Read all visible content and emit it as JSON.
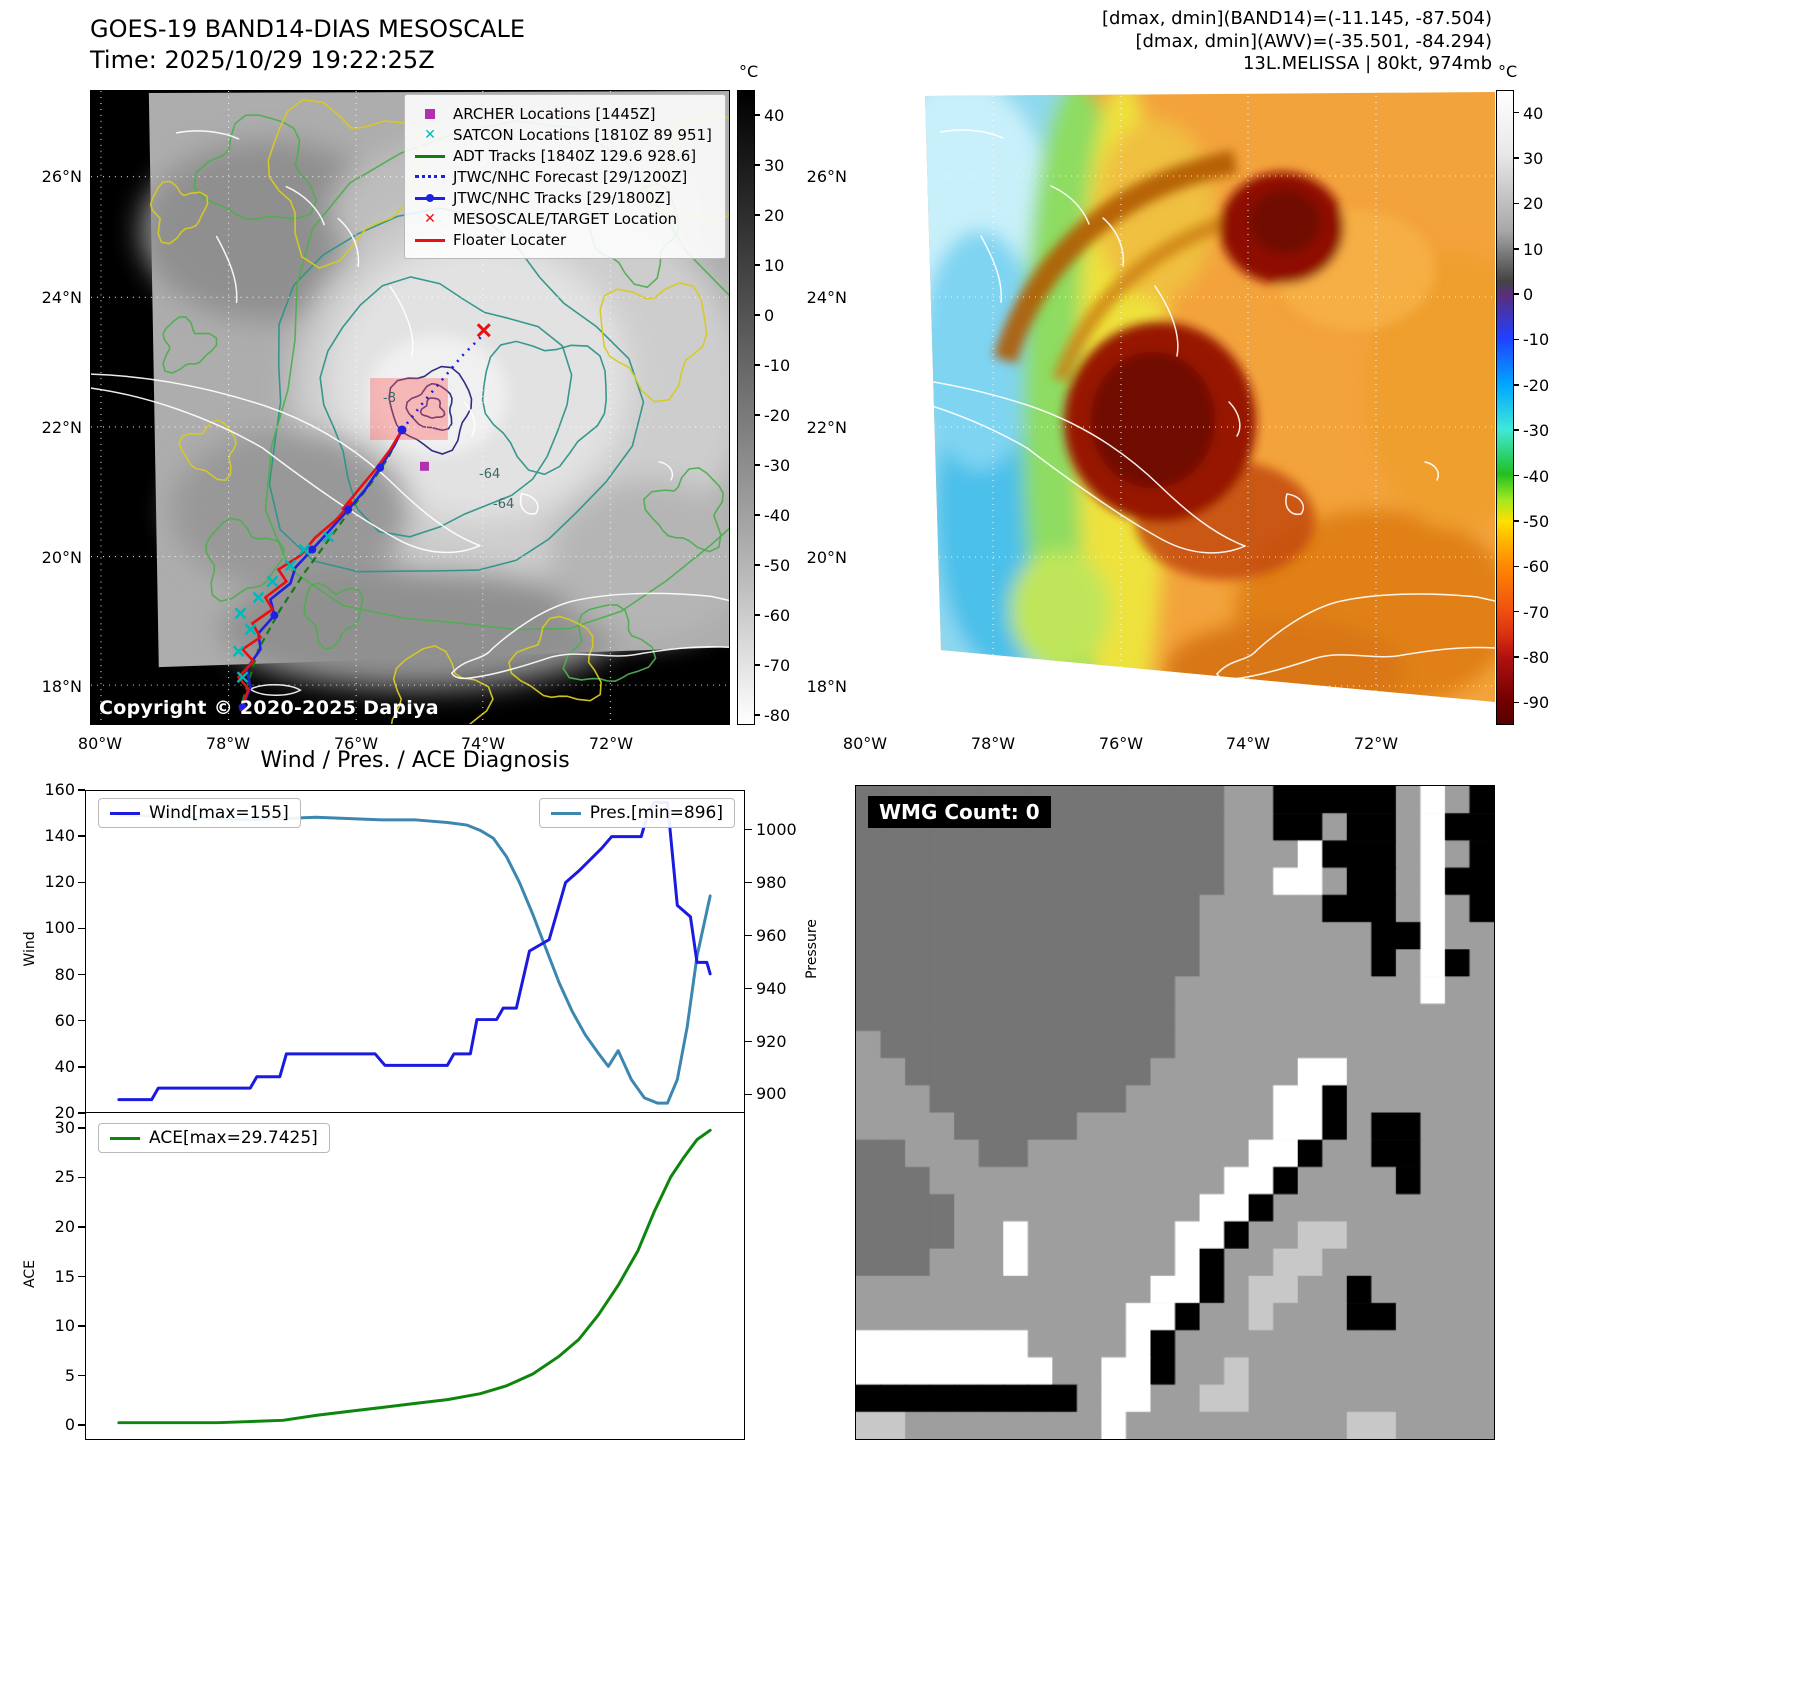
{
  "panel_band14": {
    "title_line1": "GOES-19 BAND14-DIAS MESOSCALE",
    "title_line2": "Time: 2025/10/29 19:22:25Z",
    "copyright": "Copyright © 2020-2025 Dapiya",
    "lat_ticks": [
      "26°N",
      "24°N",
      "22°N",
      "20°N",
      "18°N"
    ],
    "lon_ticks": [
      "80°W",
      "78°W",
      "76°W",
      "74°W",
      "72°W"
    ],
    "colorbar_unit": "°C",
    "colorbar_ticks": [
      40,
      30,
      20,
      10,
      0,
      -10,
      -20,
      -30,
      -40,
      -50,
      -60,
      -70,
      -80
    ],
    "contour_labels": [
      "-8",
      "-64",
      "-64"
    ],
    "legend": [
      {
        "label": "ARCHER Locations [1445Z]",
        "marker": "square",
        "color": "#b030b0"
      },
      {
        "label": "SATCON Locations [1810Z 89 951]",
        "marker": "x",
        "color": "#00b8b8"
      },
      {
        "label": "ADT Tracks [1840Z 129.6 928.6]",
        "marker": "line",
        "color": "#157a15"
      },
      {
        "label": "JTWC/NHC Forecast [29/1200Z]",
        "marker": "dotted",
        "color": "#2020e0"
      },
      {
        "label": "JTWC/NHC Tracks [29/1800Z]",
        "marker": "line-dot",
        "color": "#2020e0"
      },
      {
        "label": "MESOSCALE/TARGET Location",
        "marker": "x",
        "color": "#e81010"
      },
      {
        "label": "Floater Locater",
        "marker": "line",
        "color": "#e81010"
      }
    ]
  },
  "panel_awv": {
    "header_line1": "[dmax, dmin](BAND14)=(-11.145, -87.504)",
    "header_line2": "[dmax, dmin](AWV)=(-35.501, -84.294)",
    "header_line3": "13L.MELISSA | 80kt, 974mb",
    "lat_ticks": [
      "26°N",
      "24°N",
      "22°N",
      "20°N",
      "18°N"
    ],
    "lon_ticks": [
      "80°W",
      "78°W",
      "76°W",
      "74°W",
      "72°W"
    ],
    "colorbar_unit": "°C",
    "colorbar_ticks": [
      40,
      30,
      20,
      10,
      0,
      -10,
      -20,
      -30,
      -40,
      -50,
      -60,
      -70,
      -80,
      -90
    ]
  },
  "chart_data": [
    {
      "type": "line",
      "title": "Wind / Pres. / ACE Diagnosis",
      "xlim": [
        0,
        1
      ],
      "ylabel": "Wind",
      "ylim": [
        20,
        160
      ],
      "yticks": [
        160,
        140,
        120,
        100,
        80,
        60,
        40,
        20
      ],
      "y2label": "Pressure",
      "y2lim": [
        893,
        1015
      ],
      "y2ticks": [
        1000,
        980,
        960,
        940,
        920,
        900
      ],
      "grid": false,
      "series": [
        {
          "name": "Wind[max=155]",
          "axis": "y",
          "color": "#1a1ae0",
          "x": [
            0.05,
            0.1,
            0.11,
            0.155,
            0.16,
            0.25,
            0.26,
            0.295,
            0.305,
            0.44,
            0.455,
            0.55,
            0.56,
            0.585,
            0.595,
            0.625,
            0.635,
            0.655,
            0.675,
            0.705,
            0.73,
            0.75,
            0.785,
            0.8,
            0.845,
            0.855,
            0.865,
            0.885,
            0.9,
            0.92,
            0.93,
            0.945,
            0.95
          ],
          "values": [
            25,
            25,
            30,
            30,
            30,
            30,
            35,
            35,
            45,
            45,
            40,
            40,
            45,
            45,
            60,
            60,
            65,
            65,
            90,
            95,
            120,
            125,
            135,
            140,
            140,
            150,
            155,
            155,
            110,
            105,
            85,
            85,
            80
          ]
        },
        {
          "name": "Pres.[min=896]",
          "axis": "y2",
          "color": "#3c87b0",
          "x": [
            0.05,
            0.15,
            0.25,
            0.35,
            0.45,
            0.5,
            0.55,
            0.58,
            0.6,
            0.62,
            0.64,
            0.66,
            0.68,
            0.7,
            0.72,
            0.74,
            0.76,
            0.78,
            0.795,
            0.81,
            0.83,
            0.85,
            0.87,
            0.885,
            0.9,
            0.915,
            0.93,
            0.95
          ],
          "values": [
            1006,
            1005,
            1004,
            1005,
            1004,
            1004,
            1003,
            1002,
            1000,
            997,
            990,
            980,
            968,
            955,
            942,
            931,
            922,
            915,
            910,
            916,
            905,
            898,
            896,
            896,
            905,
            925,
            952,
            975
          ]
        }
      ]
    },
    {
      "type": "line",
      "title": "",
      "xlim": [
        0,
        1
      ],
      "ylabel": "ACE",
      "ylim": [
        -1.5,
        31.5
      ],
      "yticks": [
        30,
        25,
        20,
        15,
        10,
        5,
        0
      ],
      "grid": false,
      "series": [
        {
          "name": "ACE[max=29.7425]",
          "axis": "y",
          "color": "#0e860e",
          "x": [
            0.05,
            0.2,
            0.3,
            0.35,
            0.4,
            0.45,
            0.5,
            0.55,
            0.6,
            0.64,
            0.68,
            0.72,
            0.75,
            0.78,
            0.81,
            0.84,
            0.865,
            0.89,
            0.91,
            0.93,
            0.95
          ],
          "values": [
            0.05,
            0.05,
            0.3,
            0.8,
            1.2,
            1.6,
            2.0,
            2.4,
            3.0,
            3.8,
            5.0,
            6.8,
            8.5,
            11,
            14,
            17.5,
            21.5,
            25,
            27,
            28.8,
            29.74
          ]
        }
      ]
    }
  ],
  "wmg": {
    "title": "WMG Count: 0",
    "palette": {
      "D": "#757575",
      "G": "#9e9e9e",
      "L": "#c8c8c8",
      "W": "#ffffff",
      "B": "#000000"
    },
    "rows": [
      "DDDDDDDDDDDDDDDGGBBBBBGWGB",
      "DDDDDDDDDDDDDDDGGBBGBBGWBB",
      "DDDDDDDDDDDDDDDGGGWBBBGWGB",
      "DDDDDDDDDDDDDDDGGWWGBBGWBB",
      "DDDDDDDDDDDDDDGGGGGBBBGWGB",
      "DDDDDDDDDDDDDDGGGGGGGBBWGG",
      "DDDDDDDDDDDDDDGGGGGGGBGWBG",
      "DDDDDDDDDDDDDGGGGGGGGGGWGG",
      "DDDDDDDDDDDDDGGGGGGGGGGGGG",
      "GDDDDDDDDDDDDGGGGGGGGGGGGG",
      "GGDDDDDDDDDDGGGGGGWWGGGGGG",
      "GGGDDDDDDDDGGGGGGWWBGGGGGG",
      "GGGGDDDDDGGGGGGGGWWBGBBGGG",
      "DDGGGDDGGGGGGGGGWWBGGBBGGG",
      "DDDGGGGGGGGGGGGWWBGGGGBGGG",
      "DDDDGGGGGGGGGGWWBGGGGGGGGG",
      "DDDDGGWGGGGGGWWBGGLLGGGGGG",
      "DDDGGGWGGGGGGWBGGLLGGGGGGG",
      "GGGGGGGGGGGGWWBGLLGGBGGGGG",
      "GGGGGGGGGGGWWBGGLGGGBBGGGG",
      "WWWWWWWGGGGWBGGGGGGGGGGGGG",
      "WWWWWWWWGGWWBGGLGGGGGGGGGG",
      "BBBBBBBBBGWWGGLLGGGGGGGGGG",
      "LLGGGGGGGGWGGGGGGGGGLLGGGG"
    ]
  }
}
